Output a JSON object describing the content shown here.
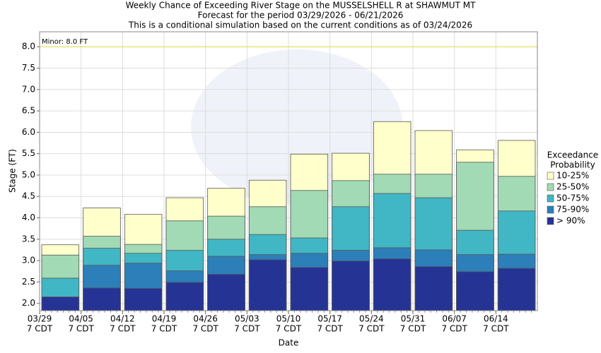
{
  "chart_data": {
    "type": "bar",
    "title": "Weekly Chance of Exceeding River Stage on the MUSSELSHELL R at SHAWMUT MT",
    "subtitles": [
      "Forecast for the period 03/29/2026 - 06/21/2026",
      "This is a conditional simulation based on the current conditions as of 03/24/2026"
    ],
    "x_label": "Date",
    "y_label": "Stage (FT)",
    "categories": [
      "03/29",
      "04/05",
      "04/12",
      "04/19",
      "04/26",
      "05/03",
      "05/10",
      "05/17",
      "05/24",
      "05/31",
      "06/07",
      "06/14"
    ],
    "x_tick_sublabel": "7 CDT",
    "legend_title": [
      "Exceedance",
      "Probability"
    ],
    "legend_position": "right",
    "series": [
      {
        "name": "10-25%",
        "color": "#ffffcc",
        "values": [
          3.37,
          4.23,
          4.08,
          4.47,
          4.69,
          4.88,
          5.49,
          5.51,
          6.25,
          6.04,
          5.59,
          5.81
        ]
      },
      {
        "name": "25-50%",
        "color": "#a1dab4",
        "values": [
          3.13,
          3.57,
          3.38,
          3.93,
          4.04,
          4.26,
          4.64,
          4.87,
          5.02,
          5.02,
          5.3,
          4.97
        ]
      },
      {
        "name": "50-75%",
        "color": "#41b6c4",
        "values": [
          2.59,
          3.29,
          3.17,
          3.24,
          3.5,
          3.61,
          3.53,
          4.26,
          4.57,
          4.47,
          3.71,
          4.16
        ]
      },
      {
        "name": "75-90%",
        "color": "#2c7fb8",
        "values": [
          2.15,
          2.89,
          2.94,
          2.76,
          3.1,
          3.14,
          3.17,
          3.24,
          3.3,
          3.25,
          3.14,
          3.15
        ]
      },
      {
        "name": "> 90%",
        "color": "#253494",
        "values": [
          2.15,
          2.36,
          2.35,
          2.49,
          2.68,
          3.02,
          2.84,
          2.99,
          3.04,
          2.86,
          2.74,
          2.82
        ]
      }
    ],
    "ylim": [
      1.83,
      8.35
    ],
    "yticks": [
      {
        "value": 2,
        "label": "2.0"
      },
      2.5,
      {
        "value": 3,
        "label": "3.0"
      },
      3.5,
      {
        "value": 4,
        "label": "4.0"
      },
      4.5,
      {
        "value": 5,
        "label": "5.0"
      },
      5.5,
      {
        "value": 6,
        "label": "6.0"
      },
      6.5,
      {
        "value": 7,
        "label": "7.0"
      },
      7.5,
      {
        "value": 8,
        "label": "8.0"
      }
    ],
    "grid": true,
    "threshold": {
      "text": "Minor: 8.0 FT",
      "value": 8.0,
      "color": "#e0e040"
    }
  }
}
